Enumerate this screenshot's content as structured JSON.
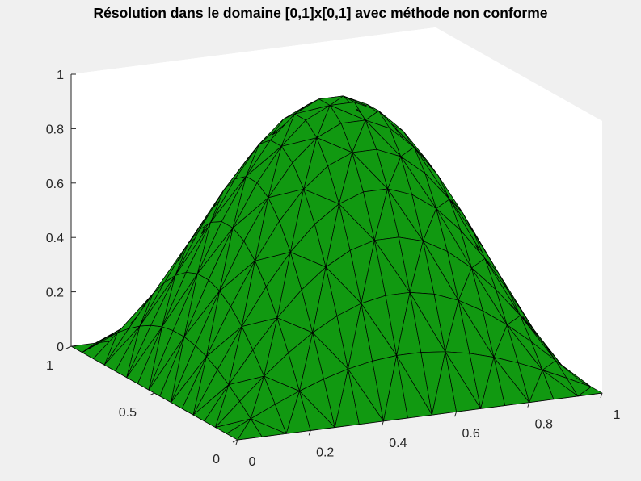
{
  "chart_data": {
    "type": "surface",
    "title": "Résolution dans le domaine [0,1]x[0,1] avec méthode non conforme",
    "function": "z = sin(pi*x) * sin(pi*y)",
    "x": [
      0,
      0.0667,
      0.1333,
      0.2,
      0.2667,
      0.3333,
      0.4,
      0.4667,
      0.5333,
      0.6,
      0.6667,
      0.7333,
      0.8,
      0.8667,
      0.9333,
      1
    ],
    "y": [
      0,
      0.0667,
      0.1333,
      0.2,
      0.2667,
      0.3333,
      0.4,
      0.4667,
      0.5333,
      0.6,
      0.6667,
      0.7333,
      0.8,
      0.8667,
      0.9333,
      1
    ],
    "z_max": 1.0,
    "xlim": [
      0,
      1
    ],
    "ylim": [
      0,
      1
    ],
    "zlim": [
      0,
      1
    ],
    "x_ticks": [
      "0",
      "0.2",
      "0.4",
      "0.6",
      "0.8",
      "1"
    ],
    "y_ticks": [
      "0",
      "0.5",
      "1"
    ],
    "z_ticks": [
      "0",
      "0.2",
      "0.4",
      "0.6",
      "0.8",
      "1"
    ],
    "face_color": "#119911",
    "edge_color": "#000000",
    "mesh": "triangular",
    "grid": false
  }
}
